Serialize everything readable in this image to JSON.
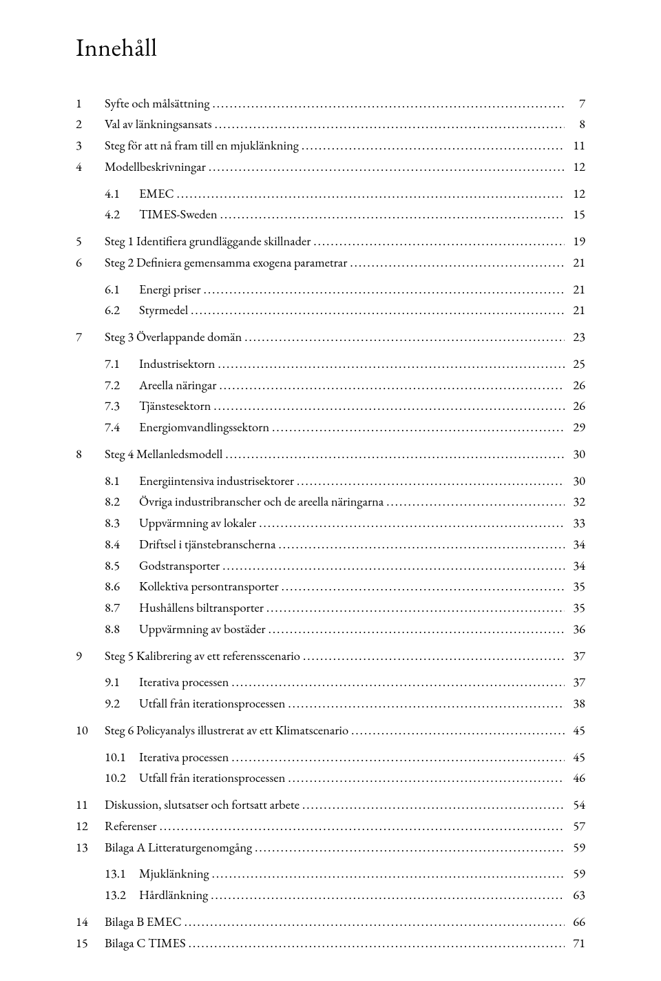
{
  "title": "Innehåll",
  "entries": [
    {
      "type": "main",
      "num": "1",
      "text": "Syfte och målsättning",
      "page": "7"
    },
    {
      "type": "main",
      "num": "2",
      "text": "Val av länkningsansats",
      "page": "8"
    },
    {
      "type": "main",
      "num": "3",
      "text": "Steg för att nå fram till en mjuklänkning",
      "page": "11"
    },
    {
      "type": "main",
      "num": "4",
      "text": "Modellbeskrivningar",
      "page": "12"
    },
    {
      "type": "sub",
      "num": "4.1",
      "text": "EMEC",
      "page": "12"
    },
    {
      "type": "sub",
      "num": "4.2",
      "text": "TIMES-Sweden",
      "page": "15"
    },
    {
      "type": "main",
      "num": "5",
      "text": "Steg 1 Identifiera grundläggande skillnader",
      "page": "19"
    },
    {
      "type": "main",
      "num": "6",
      "text": "Steg 2 Definiera gemensamma exogena parametrar",
      "page": "21"
    },
    {
      "type": "sub",
      "num": "6.1",
      "text": "Energi priser",
      "page": "21"
    },
    {
      "type": "sub",
      "num": "6.2",
      "text": "Styrmedel",
      "page": "21"
    },
    {
      "type": "main",
      "num": "7",
      "text": "Steg 3 Överlappande domän",
      "page": "23"
    },
    {
      "type": "sub",
      "num": "7.1",
      "text": "Industrisektorn",
      "page": "25"
    },
    {
      "type": "sub",
      "num": "7.2",
      "text": "Areella näringar",
      "page": "26"
    },
    {
      "type": "sub",
      "num": "7.3",
      "text": "Tjänstesektorn",
      "page": "26"
    },
    {
      "type": "sub",
      "num": "7.4",
      "text": "Energiomvandlingssektorn",
      "page": "29"
    },
    {
      "type": "main",
      "num": "8",
      "text": "Steg 4 Mellanledsmodell",
      "page": "30"
    },
    {
      "type": "sub",
      "num": "8.1",
      "text": "Energiintensiva industrisektorer",
      "page": "30"
    },
    {
      "type": "sub",
      "num": "8.2",
      "text": "Övriga industribranscher och de areella näringarna",
      "page": "32"
    },
    {
      "type": "sub",
      "num": "8.3",
      "text": "Uppvärmning av lokaler",
      "page": "33"
    },
    {
      "type": "sub",
      "num": "8.4",
      "text": "Driftsel i tjänstebranscherna",
      "page": "34"
    },
    {
      "type": "sub",
      "num": "8.5",
      "text": "Godstransporter",
      "page": "34"
    },
    {
      "type": "sub",
      "num": "8.6",
      "text": "Kollektiva persontransporter",
      "page": "35"
    },
    {
      "type": "sub",
      "num": "8.7",
      "text": "Hushållens biltransporter",
      "page": "35"
    },
    {
      "type": "sub",
      "num": "8.8",
      "text": "Uppvärmning av bostäder",
      "page": "36"
    },
    {
      "type": "main",
      "num": "9",
      "text": "Steg 5 Kalibrering av ett referensscenario",
      "page": "37"
    },
    {
      "type": "sub",
      "num": "9.1",
      "text": "Iterativa processen",
      "page": "37"
    },
    {
      "type": "sub",
      "num": "9.2",
      "text": "Utfall från iterationsprocessen",
      "page": "38"
    },
    {
      "type": "main",
      "num": "10",
      "text": "Steg 6 Policyanalys illustrerat av ett Klimatscenario",
      "page": "45"
    },
    {
      "type": "sub",
      "num": "10.1",
      "text": "Iterativa processen",
      "page": "45"
    },
    {
      "type": "sub",
      "num": "10.2",
      "text": "Utfall från iterationsprocessen",
      "page": "46"
    },
    {
      "type": "main",
      "num": "11",
      "text": "Diskussion, slutsatser och fortsatt arbete",
      "page": "54"
    },
    {
      "type": "main",
      "num": "12",
      "text": "Referenser",
      "page": "57"
    },
    {
      "type": "main",
      "num": "13",
      "text": "Bilaga A Litteraturgenomgång",
      "page": "59"
    },
    {
      "type": "sub",
      "num": "13.1",
      "text": "Mjuklänkning",
      "page": "59"
    },
    {
      "type": "sub",
      "num": "13.2",
      "text": "Hårdlänkning",
      "page": "63"
    },
    {
      "type": "main",
      "num": "14",
      "text": "Bilaga B EMEC",
      "page": "66"
    },
    {
      "type": "main",
      "num": "15",
      "text": "Bilaga C TIMES",
      "page": "71"
    }
  ]
}
